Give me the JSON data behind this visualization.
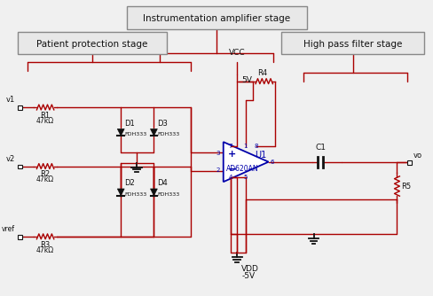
{
  "title": "Instrumentation amplifier stage",
  "label_patient": "Patient protection stage",
  "label_highpass": "High pass filter stage",
  "bg_color": "#f0f0f0",
  "red": "#aa0000",
  "blue": "#0000aa",
  "black": "#111111"
}
